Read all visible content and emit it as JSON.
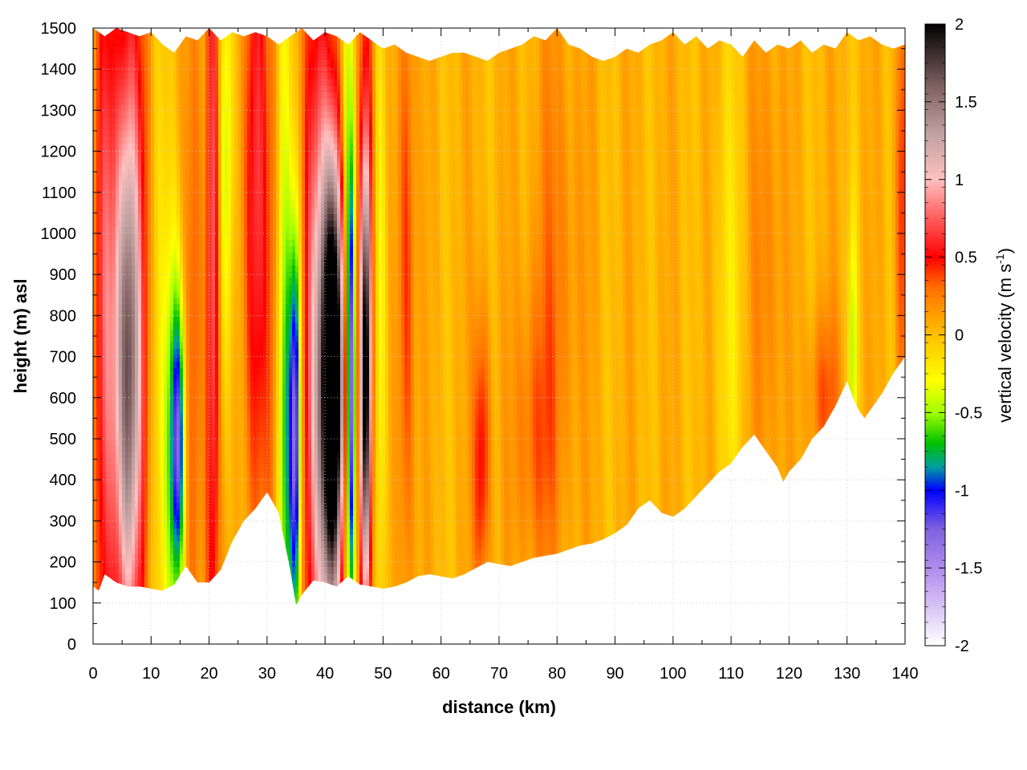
{
  "chart_data": {
    "type": "heatmap",
    "xlabel": "distance (km)",
    "ylabel": "height (m) asl",
    "xlim": [
      0,
      140
    ],
    "ylim": [
      0,
      1500
    ],
    "x_ticks": [
      "0",
      "10",
      "20",
      "30",
      "40",
      "50",
      "60",
      "70",
      "80",
      "90",
      "100",
      "110",
      "120",
      "130",
      "140"
    ],
    "y_ticks": [
      "0",
      "100",
      "200",
      "300",
      "400",
      "500",
      "600",
      "700",
      "800",
      "900",
      "1000",
      "1100",
      "1200",
      "1300",
      "1400",
      "1500"
    ],
    "grid": true,
    "colorbar": {
      "label_main": "vertical velocity (m s",
      "label_sup": "-1",
      "label_end": ")",
      "range": [
        -2,
        2
      ],
      "ticks": [
        "2",
        "1.5",
        "1",
        "0.5",
        "0",
        "-0.5",
        "-1",
        "-1.5",
        "-2"
      ],
      "colors": [
        {
          "v": -2.0,
          "c": "#ffffff"
        },
        {
          "v": -1.6,
          "c": "#c0a0f0"
        },
        {
          "v": -1.25,
          "c": "#8060e0"
        },
        {
          "v": -1.0,
          "c": "#0000ff"
        },
        {
          "v": -0.85,
          "c": "#00a0a0"
        },
        {
          "v": -0.7,
          "c": "#00c000"
        },
        {
          "v": -0.5,
          "c": "#a0ff00"
        },
        {
          "v": -0.3,
          "c": "#ffff00"
        },
        {
          "v": 0.0,
          "c": "#ffc000"
        },
        {
          "v": 0.3,
          "c": "#ff7000"
        },
        {
          "v": 0.5,
          "c": "#ff0000"
        },
        {
          "v": 0.8,
          "c": "#ff7070"
        },
        {
          "v": 1.0,
          "c": "#ffc0c0"
        },
        {
          "v": 1.3,
          "c": "#c0a0a0"
        },
        {
          "v": 1.6,
          "c": "#806060"
        },
        {
          "v": 2.0,
          "c": "#000000"
        }
      ]
    },
    "terrain_km_m": [
      [
        0,
        140
      ],
      [
        1,
        130
      ],
      [
        2,
        170
      ],
      [
        4,
        150
      ],
      [
        6,
        140
      ],
      [
        8,
        140
      ],
      [
        10,
        135
      ],
      [
        12,
        130
      ],
      [
        14,
        145
      ],
      [
        16,
        190
      ],
      [
        18,
        150
      ],
      [
        20,
        150
      ],
      [
        22,
        180
      ],
      [
        24,
        250
      ],
      [
        26,
        300
      ],
      [
        28,
        330
      ],
      [
        30,
        370
      ],
      [
        32,
        320
      ],
      [
        34,
        180
      ],
      [
        35,
        95
      ],
      [
        36,
        120
      ],
      [
        38,
        155
      ],
      [
        40,
        150
      ],
      [
        42,
        140
      ],
      [
        44,
        165
      ],
      [
        46,
        145
      ],
      [
        48,
        140
      ],
      [
        50,
        135
      ],
      [
        52,
        140
      ],
      [
        54,
        150
      ],
      [
        56,
        165
      ],
      [
        58,
        170
      ],
      [
        60,
        165
      ],
      [
        62,
        160
      ],
      [
        64,
        170
      ],
      [
        66,
        185
      ],
      [
        68,
        200
      ],
      [
        70,
        195
      ],
      [
        72,
        190
      ],
      [
        74,
        200
      ],
      [
        76,
        210
      ],
      [
        78,
        215
      ],
      [
        80,
        220
      ],
      [
        82,
        230
      ],
      [
        84,
        240
      ],
      [
        86,
        245
      ],
      [
        88,
        255
      ],
      [
        90,
        270
      ],
      [
        92,
        290
      ],
      [
        94,
        330
      ],
      [
        96,
        350
      ],
      [
        98,
        320
      ],
      [
        100,
        310
      ],
      [
        102,
        330
      ],
      [
        104,
        360
      ],
      [
        106,
        390
      ],
      [
        108,
        420
      ],
      [
        110,
        440
      ],
      [
        112,
        480
      ],
      [
        114,
        510
      ],
      [
        116,
        470
      ],
      [
        118,
        430
      ],
      [
        119,
        395
      ],
      [
        120,
        420
      ],
      [
        122,
        450
      ],
      [
        124,
        500
      ],
      [
        126,
        530
      ],
      [
        128,
        580
      ],
      [
        130,
        640
      ],
      [
        131,
        600
      ],
      [
        132,
        570
      ],
      [
        133,
        550
      ],
      [
        134,
        570
      ],
      [
        136,
        610
      ],
      [
        138,
        660
      ],
      [
        140,
        700
      ]
    ],
    "top_km_m": [
      [
        0,
        1500
      ],
      [
        2,
        1480
      ],
      [
        4,
        1500
      ],
      [
        6,
        1490
      ],
      [
        8,
        1480
      ],
      [
        10,
        1490
      ],
      [
        12,
        1460
      ],
      [
        14,
        1440
      ],
      [
        16,
        1480
      ],
      [
        18,
        1470
      ],
      [
        20,
        1500
      ],
      [
        22,
        1470
      ],
      [
        24,
        1490
      ],
      [
        26,
        1480
      ],
      [
        28,
        1490
      ],
      [
        30,
        1480
      ],
      [
        32,
        1460
      ],
      [
        34,
        1480
      ],
      [
        36,
        1500
      ],
      [
        38,
        1470
      ],
      [
        40,
        1490
      ],
      [
        42,
        1480
      ],
      [
        44,
        1460
      ],
      [
        46,
        1490
      ],
      [
        48,
        1470
      ],
      [
        50,
        1450
      ],
      [
        52,
        1460
      ],
      [
        54,
        1440
      ],
      [
        56,
        1430
      ],
      [
        58,
        1420
      ],
      [
        60,
        1430
      ],
      [
        62,
        1440
      ],
      [
        64,
        1440
      ],
      [
        66,
        1430
      ],
      [
        68,
        1420
      ],
      [
        70,
        1440
      ],
      [
        72,
        1450
      ],
      [
        74,
        1460
      ],
      [
        76,
        1480
      ],
      [
        78,
        1470
      ],
      [
        80,
        1500
      ],
      [
        82,
        1460
      ],
      [
        84,
        1450
      ],
      [
        86,
        1430
      ],
      [
        88,
        1420
      ],
      [
        90,
        1430
      ],
      [
        92,
        1450
      ],
      [
        94,
        1440
      ],
      [
        96,
        1460
      ],
      [
        98,
        1470
      ],
      [
        100,
        1490
      ],
      [
        102,
        1460
      ],
      [
        104,
        1480
      ],
      [
        106,
        1450
      ],
      [
        108,
        1470
      ],
      [
        110,
        1460
      ],
      [
        112,
        1430
      ],
      [
        114,
        1470
      ],
      [
        116,
        1440
      ],
      [
        118,
        1460
      ],
      [
        120,
        1450
      ],
      [
        122,
        1470
      ],
      [
        124,
        1440
      ],
      [
        126,
        1460
      ],
      [
        128,
        1450
      ],
      [
        130,
        1490
      ],
      [
        132,
        1470
      ],
      [
        134,
        1480
      ],
      [
        136,
        1460
      ],
      [
        138,
        1450
      ],
      [
        140,
        1460
      ]
    ],
    "features": [
      {
        "x": 6,
        "y": 650,
        "wx": 1.6,
        "wy": 450,
        "v": 1.2
      },
      {
        "x": 6,
        "y": 900,
        "wx": 2.5,
        "wy": 700,
        "v": 0.5
      },
      {
        "x": 2,
        "y": 800,
        "wx": 1.2,
        "wy": 700,
        "v": 0.5
      },
      {
        "x": 11,
        "y": 700,
        "wx": 1.2,
        "wy": 700,
        "v": -0.2
      },
      {
        "x": 14.7,
        "y": 480,
        "wx": 0.8,
        "wy": 260,
        "v": -1.1
      },
      {
        "x": 13.5,
        "y": 500,
        "wx": 1.0,
        "wy": 400,
        "v": -0.5
      },
      {
        "x": 17.5,
        "y": 700,
        "wx": 1.0,
        "wy": 700,
        "v": 0.3
      },
      {
        "x": 20.5,
        "y": 900,
        "wx": 0.8,
        "wy": 900,
        "v": 0.7
      },
      {
        "x": 23,
        "y": 1200,
        "wx": 0.8,
        "wy": 400,
        "v": -0.5
      },
      {
        "x": 28,
        "y": 1100,
        "wx": 1.5,
        "wy": 600,
        "v": 0.6
      },
      {
        "x": 31,
        "y": 700,
        "wx": 0.8,
        "wy": 700,
        "v": 0.2
      },
      {
        "x": 33,
        "y": 800,
        "wx": 1.0,
        "wy": 900,
        "v": -0.3
      },
      {
        "x": 35,
        "y": 550,
        "wx": 0.6,
        "wy": 350,
        "v": -1.0
      },
      {
        "x": 34,
        "y": 450,
        "wx": 1.2,
        "wy": 400,
        "v": -0.6
      },
      {
        "x": 39,
        "y": 800,
        "wx": 2.0,
        "wy": 700,
        "v": 0.7
      },
      {
        "x": 41.5,
        "y": 650,
        "wx": 1.2,
        "wy": 330,
        "v": 2.0
      },
      {
        "x": 40.5,
        "y": 550,
        "wx": 1.8,
        "wy": 450,
        "v": 0.9
      },
      {
        "x": 44.5,
        "y": 600,
        "wx": 0.5,
        "wy": 400,
        "v": -1.1
      },
      {
        "x": 44,
        "y": 900,
        "wx": 0.9,
        "wy": 800,
        "v": -0.6
      },
      {
        "x": 47,
        "y": 650,
        "wx": 0.6,
        "wy": 350,
        "v": 1.8
      },
      {
        "x": 47,
        "y": 900,
        "wx": 1.2,
        "wy": 800,
        "v": 0.5
      },
      {
        "x": 49.5,
        "y": 800,
        "wx": 0.8,
        "wy": 700,
        "v": -0.4
      },
      {
        "x": 54,
        "y": 900,
        "wx": 1.0,
        "wy": 600,
        "v": 0.4
      },
      {
        "x": 67,
        "y": 450,
        "wx": 1.0,
        "wy": 250,
        "v": 0.5
      },
      {
        "x": 76,
        "y": 500,
        "wx": 2.5,
        "wy": 250,
        "v": 0.25
      },
      {
        "x": 80,
        "y": 900,
        "wx": 3.0,
        "wy": 500,
        "v": 0.2
      },
      {
        "x": 110,
        "y": 800,
        "wx": 2.0,
        "wy": 500,
        "v": -0.2
      },
      {
        "x": 116,
        "y": 900,
        "wx": 2.0,
        "wy": 500,
        "v": 0.2
      },
      {
        "x": 126,
        "y": 600,
        "wx": 2.0,
        "wy": 150,
        "v": 0.3
      },
      {
        "x": 131,
        "y": 700,
        "wx": 0.5,
        "wy": 250,
        "v": -0.5
      },
      {
        "x": 139.5,
        "y": 1100,
        "wx": 0.8,
        "wy": 400,
        "v": 0.4
      }
    ]
  }
}
